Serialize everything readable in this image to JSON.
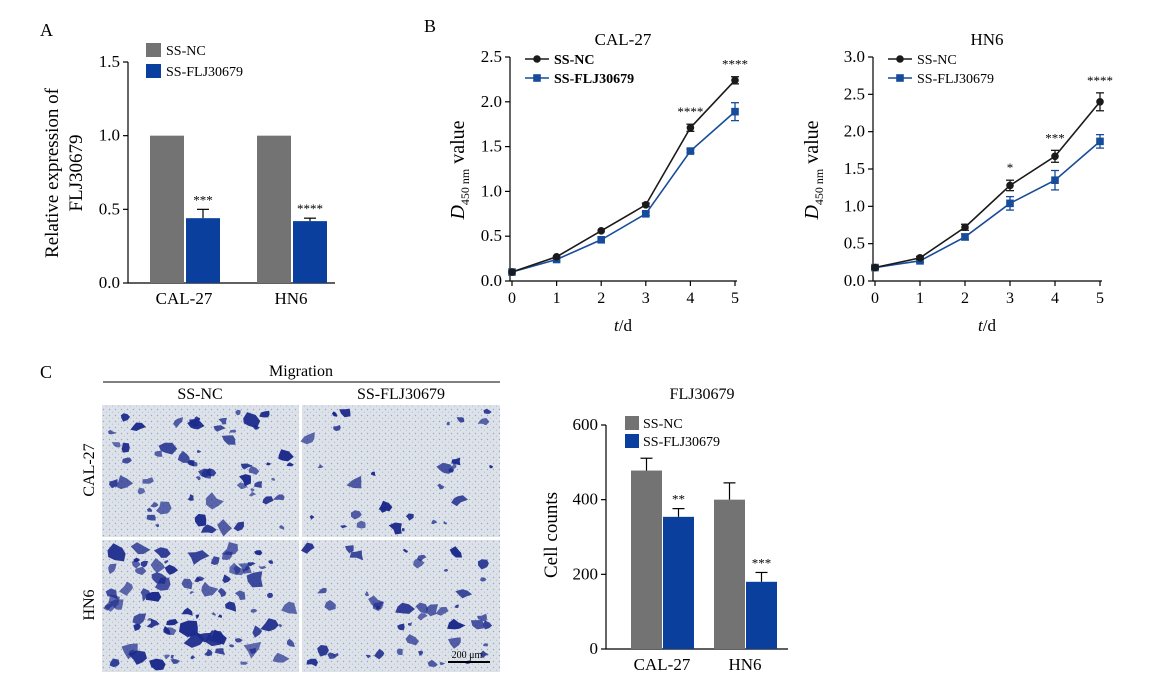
{
  "panels": {
    "a": "A",
    "b": "B",
    "c": "C"
  },
  "colors": {
    "nc_bar": "#737373",
    "flj_bar": "#0a3f9e",
    "nc_line": "#1a1a1a",
    "flj_line": "#164c9a",
    "stain": "#1c2a8c",
    "background_field": "#dfe4ea"
  },
  "chart_data": [
    {
      "panel": "A",
      "type": "bar",
      "categories": [
        "CAL-27",
        "HN6"
      ],
      "series": [
        {
          "name": "SS-NC",
          "values": [
            1.0,
            1.0
          ],
          "errors": [
            0,
            0
          ],
          "significance": [
            "",
            ""
          ]
        },
        {
          "name": "SS-FLJ30679",
          "values": [
            0.44,
            0.42
          ],
          "errors": [
            0.06,
            0.02
          ],
          "significance": [
            "***",
            "****"
          ]
        }
      ],
      "ylabel_lines": [
        "Relative expression of",
        "FLJ30679"
      ],
      "ylim": [
        0,
        1.5
      ],
      "yticks": [
        "0.0",
        "0.5",
        "1.0",
        "1.5"
      ],
      "legend": "top-left"
    },
    {
      "panel": "B",
      "type": "line",
      "title": "CAL-27",
      "x": [
        0,
        1,
        2,
        3,
        4,
        5
      ],
      "xticks": [
        "0",
        "1",
        "2",
        "3",
        "4",
        "5"
      ],
      "series": [
        {
          "name": "SS-NC",
          "values": [
            0.1,
            0.27,
            0.56,
            0.85,
            1.71,
            2.24
          ],
          "errors": [
            0.01,
            0.01,
            0.01,
            0.02,
            0.04,
            0.04
          ]
        },
        {
          "name": "SS-FLJ30679",
          "values": [
            0.1,
            0.24,
            0.46,
            0.75,
            1.45,
            1.89
          ],
          "errors": [
            0.01,
            0.01,
            0.01,
            0.02,
            0.02,
            0.1
          ]
        }
      ],
      "significance": [
        "",
        "",
        "",
        "",
        "****",
        "****"
      ],
      "ylabel_main": "D",
      "ylabel_sub": "450 nm",
      "ylabel_rest": " value",
      "xlabel_main": "t",
      "xlabel_rest": "/d",
      "ylim": [
        0,
        2.5
      ],
      "yticks": [
        "0.0",
        "0.5",
        "1.0",
        "1.5",
        "2.0",
        "2.5"
      ],
      "legend": "top-left"
    },
    {
      "panel": "B",
      "type": "line",
      "title": "HN6",
      "x": [
        0,
        1,
        2,
        3,
        4,
        5
      ],
      "xticks": [
        "0",
        "1",
        "2",
        "3",
        "4",
        "5"
      ],
      "series": [
        {
          "name": "SS-NC",
          "values": [
            0.18,
            0.31,
            0.72,
            1.28,
            1.67,
            2.4
          ],
          "errors": [
            0.02,
            0.02,
            0.04,
            0.07,
            0.08,
            0.12
          ]
        },
        {
          "name": "SS-FLJ30679",
          "values": [
            0.18,
            0.27,
            0.59,
            1.04,
            1.35,
            1.87
          ],
          "errors": [
            0.02,
            0.02,
            0.04,
            0.09,
            0.13,
            0.09
          ]
        }
      ],
      "significance": [
        "",
        "",
        "",
        "*",
        "***",
        "****"
      ],
      "ylabel_main": "D",
      "ylabel_sub": "450 nm",
      "ylabel_rest": " value",
      "xlabel_main": "t",
      "xlabel_rest": "/d",
      "ylim": [
        0,
        3.0
      ],
      "yticks": [
        "0.0",
        "0.5",
        "1.0",
        "1.5",
        "2.0",
        "2.5",
        "3.0"
      ],
      "legend": "top-left"
    },
    {
      "panel": "C",
      "type": "bar",
      "title": "FLJ30679",
      "categories": [
        "CAL-27",
        "HN6"
      ],
      "series": [
        {
          "name": "SS-NC",
          "values": [
            478,
            400
          ],
          "errors": [
            33,
            45
          ],
          "significance": [
            "",
            ""
          ]
        },
        {
          "name": "SS-FLJ30679",
          "values": [
            354,
            180
          ],
          "errors": [
            22,
            25
          ],
          "significance": [
            "**",
            "***"
          ]
        }
      ],
      "ylabel_lines": [
        "Cell counts"
      ],
      "ylim": [
        0,
        600
      ],
      "yticks": [
        "0",
        "200",
        "400",
        "600"
      ],
      "legend": "top-left"
    }
  ],
  "micrographs": {
    "title": "Migration",
    "columns": [
      "SS-NC",
      "SS-FLJ30679"
    ],
    "rows": [
      "CAL-27",
      "HN6"
    ],
    "scale_bar": "200 μm",
    "stain_density": [
      0.22,
      0.11,
      0.32,
      0.17
    ]
  }
}
